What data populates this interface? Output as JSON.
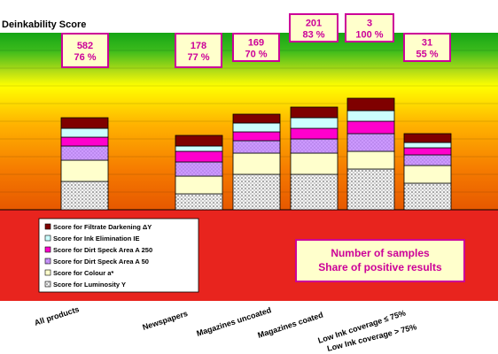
{
  "chart_data": {
    "type": "bar",
    "stacked": true,
    "title": "Deinkability Score",
    "categories": [
      "All products",
      "Newspapers",
      "Magazines uncoated",
      "Magazines coated",
      "Low Ink coverage ≤ 75%",
      "Low Ink coverage > 75%"
    ],
    "ylim": [
      0,
      100
    ],
    "grid": false,
    "legend_placement": "bottom-left",
    "series": [
      {
        "name": "Score for Luminosity Y",
        "color": "#f2f2f2",
        "pattern": "dots",
        "values": [
          16,
          9,
          20,
          20,
          23,
          15
        ]
      },
      {
        "name": "Score for Colour a*",
        "color": "#ffffcc",
        "values": [
          12,
          10,
          12,
          12,
          10,
          10
        ]
      },
      {
        "name": "Score for Dirt Speck Area A 50",
        "color": "#cc99ff",
        "pattern": "dots",
        "values": [
          8,
          8,
          7,
          8,
          10,
          6
        ]
      },
      {
        "name": "Score for Dirt Speck Area A 250",
        "color": "#ff00cc",
        "values": [
          5,
          6,
          5,
          6,
          7,
          4
        ]
      },
      {
        "name": "Score for Ink Elimination IE",
        "color": "#ccffff",
        "values": [
          5,
          3,
          5,
          6,
          6,
          3
        ]
      },
      {
        "name": "Score for Filtrate Darkening ΔY",
        "color": "#7f0000",
        "values": [
          6,
          6,
          5,
          6,
          7,
          5
        ]
      }
    ],
    "annotations": [
      {
        "category": "All products",
        "count": "582",
        "share": "76 %"
      },
      {
        "category": "Newspapers",
        "count": "178",
        "share": "77 %"
      },
      {
        "category": "Magazines uncoated",
        "count": "169",
        "share": "70 %"
      },
      {
        "category": "Magazines coated",
        "count": "201",
        "share": "83 %"
      },
      {
        "category": "Low Ink coverage ≤ 75%",
        "count": "3",
        "share": "100 %"
      },
      {
        "category": "Low Ink coverage > 75%",
        "count": "31",
        "share": "55 %"
      }
    ],
    "note": [
      "Number of samples",
      "Share of positive results"
    ],
    "background_zones": [
      "green",
      "yellow",
      "orange",
      "red"
    ]
  }
}
